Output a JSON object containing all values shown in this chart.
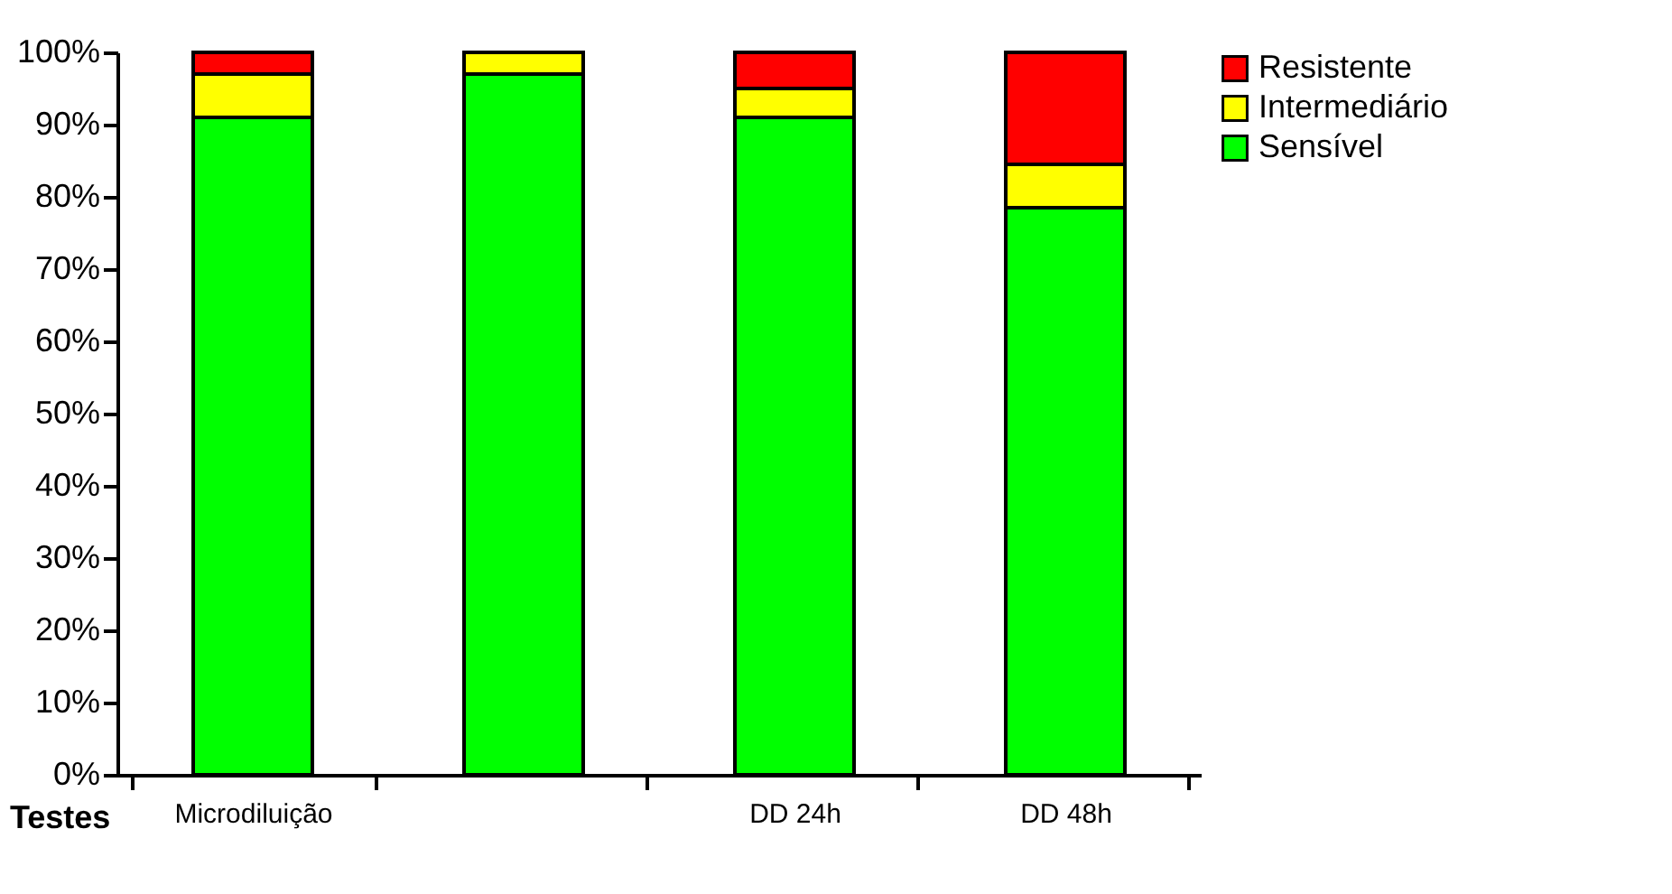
{
  "chart_data": {
    "type": "bar",
    "stacked": true,
    "xlabel": "Testes",
    "categories": [
      "Microdiluição",
      null,
      "DD 24h",
      "DD 48h"
    ],
    "series": [
      {
        "name": "Sensível",
        "color": "#00ff00",
        "values": [
          91,
          97,
          91,
          78.5
        ]
      },
      {
        "name": "Intermediário",
        "color": "#ffff00",
        "values": [
          6,
          3,
          4,
          6
        ]
      },
      {
        "name": "Resistente",
        "color": "#ff0000",
        "values": [
          3,
          0,
          5,
          15.5
        ]
      }
    ],
    "ylim": [
      0,
      100
    ],
    "yticks": [
      {
        "value": 0,
        "label": "0%"
      },
      {
        "value": 10,
        "label": "10%"
      },
      {
        "value": 20,
        "label": "20%"
      },
      {
        "value": 30,
        "label": "30%"
      },
      {
        "value": 40,
        "label": "40%"
      },
      {
        "value": 50,
        "label": "50%"
      },
      {
        "value": 60,
        "label": "60%"
      },
      {
        "value": 70,
        "label": "70%"
      },
      {
        "value": 80,
        "label": "80%"
      },
      {
        "value": 90,
        "label": "90%"
      },
      {
        "value": 100,
        "label": "100%"
      }
    ],
    "grid": false,
    "legend": "right"
  }
}
